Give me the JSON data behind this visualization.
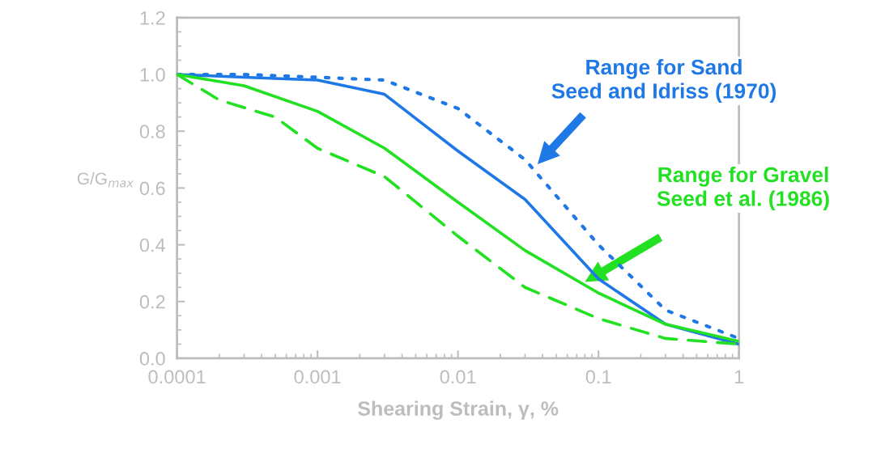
{
  "chart_data": {
    "type": "line",
    "xlabel": "Shearing Strain, γ, %",
    "ylabel": "G/G$_{max}$",
    "log": "x",
    "xlim": [
      0.0001,
      1
    ],
    "ylim": [
      0,
      1.2
    ],
    "xticks": [
      {
        "value": 0.0001,
        "label": "0.0001"
      },
      {
        "value": 0.001,
        "label": "0.001"
      },
      {
        "value": 0.01,
        "label": "0.01"
      },
      {
        "value": 0.1,
        "label": "0.1"
      },
      {
        "value": 1,
        "label": "1"
      }
    ],
    "yticks": [
      {
        "value": 0,
        "label": "0.0"
      },
      {
        "value": 0.2,
        "label": "0.2"
      },
      {
        "value": 0.4,
        "label": "0.4"
      },
      {
        "value": 0.6,
        "label": "0.6"
      },
      {
        "value": 0.8,
        "label": "0.8"
      },
      {
        "value": 1.0,
        "label": "1.0"
      },
      {
        "value": 1.2,
        "label": "1.2"
      }
    ],
    "grid": false,
    "legend": false,
    "series": [
      {
        "color": "#1e78e6",
        "line_style": "solid",
        "x": [
          0.0001,
          0.0003,
          0.001,
          0.003,
          0.01,
          0.03,
          0.1,
          0.3,
          1
        ],
        "values": [
          1.0,
          0.99,
          0.98,
          0.93,
          0.73,
          0.56,
          0.28,
          0.12,
          0.05
        ]
      },
      {
        "color": "#1e78e6",
        "line_style": "dotted",
        "x": [
          0.0001,
          0.0003,
          0.001,
          0.003,
          0.01,
          0.03,
          0.1,
          0.3,
          1
        ],
        "values": [
          1.0,
          1.0,
          0.99,
          0.98,
          0.88,
          0.7,
          0.4,
          0.17,
          0.07
        ]
      },
      {
        "color": "#22e022",
        "line_style": "solid",
        "x": [
          0.0001,
          0.0003,
          0.001,
          0.003,
          0.01,
          0.03,
          0.1,
          0.3,
          1
        ],
        "values": [
          1.0,
          0.96,
          0.87,
          0.74,
          0.55,
          0.38,
          0.23,
          0.12,
          0.06
        ]
      },
      {
        "color": "#22e022",
        "line_style": "dashed",
        "x": [
          0.0001,
          0.0002,
          0.0005,
          0.001,
          0.003,
          0.01,
          0.03,
          0.1,
          0.3,
          1
        ],
        "values": [
          1.0,
          0.91,
          0.85,
          0.74,
          0.64,
          0.43,
          0.25,
          0.14,
          0.07,
          0.05
        ]
      }
    ],
    "annotations": [
      "Range for Sand\nSeed and Idriss (1970)",
      "Range for Gravel\nSeed et al. (1986)"
    ]
  }
}
